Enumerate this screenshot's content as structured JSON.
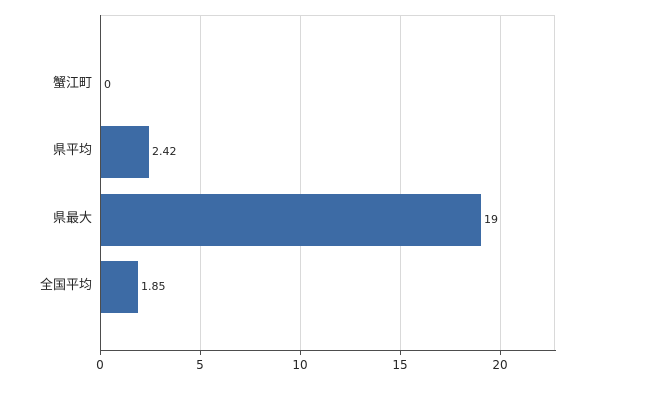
{
  "chart_data": {
    "type": "bar",
    "orientation": "horizontal",
    "title": "",
    "xlabel": "",
    "ylabel": "",
    "categories": [
      "蟹江町",
      "県平均",
      "県最大",
      "全国平均"
    ],
    "values": [
      0,
      2.42,
      19,
      1.85
    ],
    "value_labels": [
      "0",
      "2.42",
      "19",
      "1.85"
    ],
    "xlim": [
      0,
      22.75
    ],
    "xticks": [
      0,
      5,
      10,
      15,
      20
    ],
    "xtick_labels": [
      "0",
      "5",
      "10",
      "15",
      "20"
    ],
    "grid": true,
    "legend": false,
    "bar_color": "#3d6ba5",
    "axis_color": "#4d4d4d",
    "grid_color": "#d9d9d9",
    "label_color": "#262626",
    "background_color": "#ffffff"
  }
}
